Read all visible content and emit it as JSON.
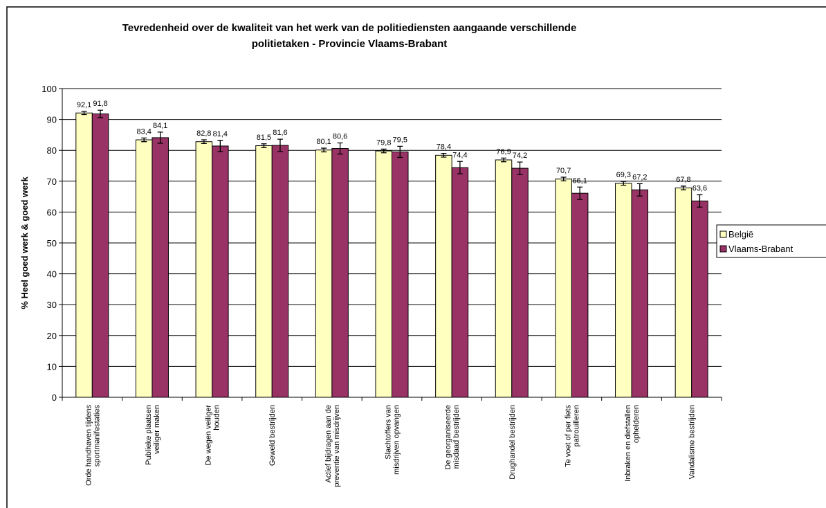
{
  "chart_data": {
    "type": "bar",
    "title": [
      "Tevredenheid over de kwaliteit van het werk van de politiediensten aangaande verschillende",
      "politietaken - Provincie Vlaams-Brabant"
    ],
    "y_label": "% Heel goed werk & goed werk",
    "categories": [
      [
        "Orde handhaven tijdens",
        "sportmanifestaties"
      ],
      [
        "Publieke plaatsen",
        "veiliger maken"
      ],
      [
        "De wegen veiliger",
        "houden"
      ],
      [
        "Geweld bestrijden"
      ],
      [
        "Actief bijdragen aan de",
        "preventie van misdrijven"
      ],
      [
        "Slachtoffers van",
        "misdrijven opvangen"
      ],
      [
        "De georganiseerde",
        "misdaad bestrijden"
      ],
      [
        "Drughandel bestrijden"
      ],
      [
        "Te voet of per fiets",
        "patrouilleren"
      ],
      [
        "Inbraken en diefstallen",
        "ophelderen"
      ],
      [
        "Vandalisme bestrijden"
      ]
    ],
    "series": [
      {
        "name": "België",
        "color": "#ffffc0",
        "values": [
          92.1,
          83.4,
          82.8,
          81.5,
          80.1,
          79.8,
          78.4,
          76.9,
          70.7,
          69.3,
          67.8
        ],
        "value_labels": [
          "92,1",
          "83,4",
          "82,8",
          "81,5",
          "80,1",
          "79,8",
          "78,4",
          "76,9",
          "70,7",
          "69,3",
          "67,8"
        ],
        "errors": [
          0.5,
          0.6,
          0.6,
          0.6,
          0.6,
          0.6,
          0.6,
          0.6,
          0.6,
          0.6,
          0.6
        ]
      },
      {
        "name": "Vlaams-Brabant",
        "color": "#993366",
        "values": [
          91.8,
          84.1,
          81.4,
          81.6,
          80.6,
          79.5,
          74.4,
          74.2,
          66.1,
          67.2,
          63.6
        ],
        "value_labels": [
          "91,8",
          "84,1",
          "81,4",
          "81,6",
          "80,6",
          "79,5",
          "74,4",
          "74,2",
          "66,1",
          "67,2",
          "63,6"
        ],
        "errors": [
          1.2,
          1.8,
          1.8,
          2.0,
          1.8,
          1.8,
          2.0,
          2.0,
          2.0,
          2.0,
          2.0
        ]
      }
    ],
    "ylim": [
      0,
      100
    ],
    "yticks": [
      0,
      10,
      20,
      30,
      40,
      50,
      60,
      70,
      80,
      90,
      100
    ],
    "grid": true,
    "legend": "right"
  }
}
